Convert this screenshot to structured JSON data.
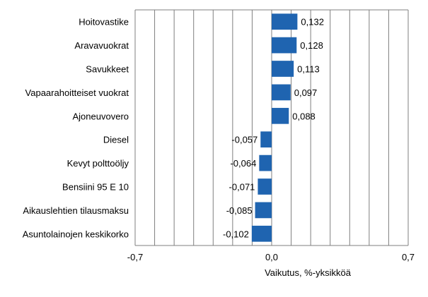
{
  "chart_data": {
    "type": "bar",
    "orientation": "horizontal",
    "categories": [
      "Hoitovastike",
      "Aravavuokrat",
      "Savukkeet",
      "Vapaarahoitteiset vuokrat",
      "Ajoneuvovero",
      "Diesel",
      "Kevyt polttoöljy",
      "Bensiini 95 E 10",
      "Aikauslehtien tilausmaksu",
      "Asuntolainojen keskikorko"
    ],
    "values": [
      0.132,
      0.128,
      0.113,
      0.097,
      0.088,
      -0.057,
      -0.064,
      -0.071,
      -0.085,
      -0.102
    ],
    "value_labels": [
      "0,132",
      "0,128",
      "0,113",
      "0,097",
      "0,088",
      "-0,057",
      "-0,064",
      "-0,071",
      "-0,085",
      "-0,102"
    ],
    "xlim": [
      -0.7,
      0.7
    ],
    "x_gridlines": [
      -0.7,
      -0.6,
      -0.5,
      -0.4,
      -0.3,
      -0.2,
      -0.1,
      0.0,
      0.1,
      0.2,
      0.3,
      0.4,
      0.5,
      0.6,
      0.7
    ],
    "x_ticks": [
      {
        "value": -0.7,
        "label": "-0,7"
      },
      {
        "value": 0.0,
        "label": "0,0"
      },
      {
        "value": 0.7,
        "label": "0,7"
      }
    ],
    "xlabel": "Vaikutus, %-yksikköä",
    "ylabel": "",
    "title": "",
    "grid": true,
    "legend": "none",
    "colors": {
      "bar": "#1f64b0",
      "grid": "#7f7f7f",
      "axis": "#7f7f7f",
      "plot_border": "#7f7f7f"
    }
  }
}
